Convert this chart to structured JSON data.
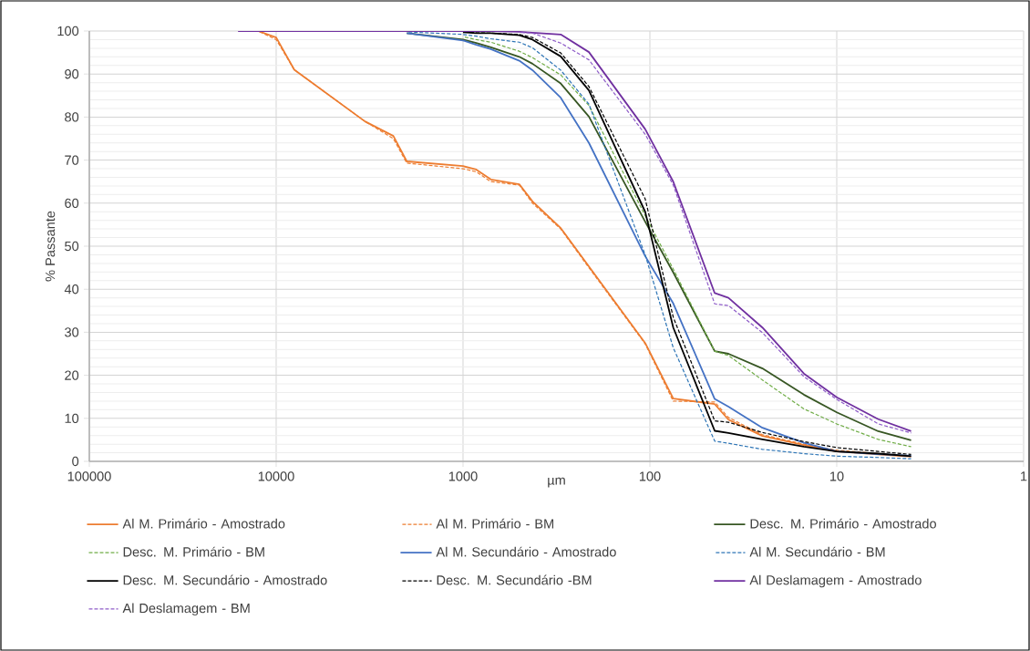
{
  "chart_data": {
    "type": "line",
    "xlabel": "µm",
    "ylabel": "% Passante",
    "x": [
      16000,
      12500,
      10000,
      8000,
      3350,
      2360,
      2000,
      1000,
      850,
      710,
      500,
      425,
      300,
      212,
      106,
      75,
      45,
      38,
      25,
      15,
      10,
      6,
      4
    ],
    "log": "x",
    "xlim": [
      100000,
      1
    ],
    "xticks": [
      100000,
      10000,
      1000,
      100,
      10,
      1
    ],
    "ylim": [
      0,
      100
    ],
    "yticks": [
      0,
      10,
      20,
      30,
      40,
      50,
      60,
      70,
      80,
      90,
      100
    ],
    "grid": true,
    "legend": "bottom",
    "marker": "none",
    "series": [
      {
        "name": "Al M. Primário - Amostrado",
        "color": "#ed7d31",
        "line_style": "solid",
        "values": [
          null,
          100,
          98.5,
          91,
          79,
          75.6,
          69.7,
          68.6,
          67.8,
          65.5,
          64.4,
          60.4,
          54.2,
          45.3,
          27.5,
          14.6,
          13.3,
          9.7,
          5.9,
          3.8,
          2.3,
          1.6,
          1.1
        ]
      },
      {
        "name": "Al M. Primário - BM",
        "color": "#ed7d31",
        "line_style": "dashed",
        "values": [
          null,
          100,
          98,
          91,
          79,
          75,
          69.3,
          68,
          67.3,
          65,
          64.2,
          60,
          54,
          45,
          27.3,
          14,
          13.8,
          10.2,
          6.2,
          4,
          2.6,
          1.8,
          1.2
        ]
      },
      {
        "name": "Desc. M. Primário - Amostrado",
        "color": "#375623",
        "line_style": "solid",
        "x": [
          2000,
          1000,
          850,
          710,
          500,
          425,
          300,
          212,
          106,
          75,
          45,
          38,
          25,
          15,
          10,
          6,
          4
        ],
        "values": [
          99.5,
          98,
          97.2,
          96.2,
          94,
          92.4,
          87.8,
          80.1,
          55.7,
          43.9,
          25.6,
          25,
          21.6,
          15.5,
          11.4,
          7,
          4.9
        ]
      },
      {
        "name": "Desc. M. Primário - BM",
        "color": "#70ad47",
        "line_style": "dashed",
        "x": [
          1000,
          850,
          710,
          500,
          425,
          300,
          212,
          106,
          75,
          45,
          38,
          25,
          15,
          10,
          6,
          4
        ],
        "values": [
          98.7,
          98,
          97.4,
          95.3,
          93.8,
          89.8,
          82.7,
          57.1,
          44.7,
          25.6,
          24.6,
          18.9,
          12.2,
          8.7,
          5.1,
          3.4
        ]
      },
      {
        "name": "Al M. Secundário - Amostrado",
        "color": "#4472c4",
        "line_style": "solid",
        "x": [
          2000,
          1000,
          850,
          710,
          500,
          425,
          300,
          212,
          106,
          75,
          45,
          38,
          25,
          15,
          10,
          6,
          4
        ],
        "values": [
          99.5,
          97.8,
          96.8,
          95.8,
          93.1,
          90.9,
          84.5,
          74,
          47.7,
          36.7,
          14.5,
          12.7,
          7.8,
          4.3,
          2.3,
          1.7,
          1.3
        ]
      },
      {
        "name": "Al M. Secundário - BM",
        "color": "#2e75b6",
        "line_style": "dashed",
        "x": [
          2000,
          1000,
          850,
          710,
          500,
          425,
          300,
          212,
          106,
          75,
          45,
          38,
          25,
          15,
          10,
          6,
          4
        ],
        "values": [
          99.8,
          99.2,
          98.8,
          98.2,
          97.4,
          96.1,
          90.9,
          83,
          48,
          26.4,
          4.7,
          4.2,
          2.8,
          1.8,
          1.2,
          0.9,
          0.6
        ]
      },
      {
        "name": "Desc. M. Secundário - Amostrado",
        "color": "#000000",
        "line_style": "solid",
        "x": [
          1000,
          850,
          710,
          500,
          425,
          300,
          212,
          106,
          75,
          45,
          38,
          25,
          15,
          10,
          6,
          4
        ],
        "values": [
          99.7,
          99.5,
          99.5,
          99,
          98,
          94.1,
          86.2,
          58,
          31.1,
          7.1,
          6.6,
          5.1,
          3.4,
          2.3,
          1.8,
          1.2
        ]
      },
      {
        "name": "Desc. M. Secundário -BM",
        "color": "#000000",
        "line_style": "dashed",
        "x": [
          1000,
          850,
          710,
          500,
          425,
          300,
          212,
          106,
          75,
          45,
          38,
          25,
          15,
          10,
          6,
          4
        ],
        "values": [
          99.8,
          99.6,
          99.5,
          99.2,
          98.5,
          94.9,
          87.1,
          61,
          33.5,
          9.4,
          9.1,
          6.7,
          4.6,
          3.2,
          2.3,
          1.6
        ]
      },
      {
        "name": "Al Deslamagem - Amostrado",
        "color": "#7030a0",
        "line_style": "solid",
        "values": [
          100,
          100,
          100,
          100,
          100,
          100,
          100,
          100,
          100,
          100,
          99.8,
          99.6,
          99.2,
          95.1,
          77.2,
          65,
          39.1,
          38,
          31.1,
          20.4,
          14.9,
          9.8,
          7
        ]
      },
      {
        "name": "Al Deslamagem - BM",
        "color": "#8e5cc8",
        "line_style": "dashed",
        "x": [
          500,
          425,
          300,
          212,
          106,
          75,
          45,
          38,
          25,
          15,
          10,
          6,
          4
        ],
        "values": [
          99.7,
          99.5,
          97.2,
          93.3,
          76,
          64.2,
          36.6,
          36.2,
          29.9,
          19.7,
          14.4,
          8.7,
          6.6
        ]
      }
    ]
  }
}
